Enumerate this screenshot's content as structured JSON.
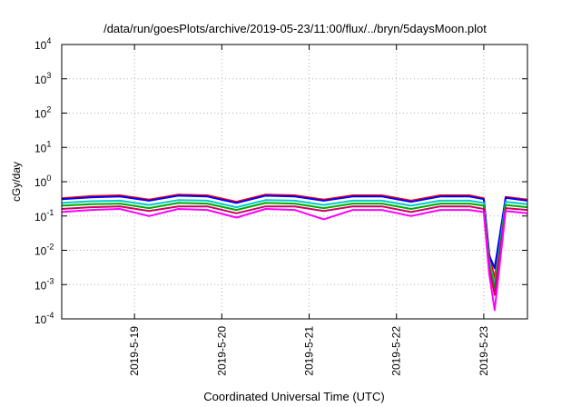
{
  "chart_data": {
    "type": "line",
    "title": "/data/run/goesPlots/archive/2019-05-23/11:00/flux/../bryn/5daysMoon.plot",
    "xlabel": "Coordinated Universal Time (UTC)",
    "ylabel": "cGy/day",
    "y_scale": "log",
    "ylim": [
      0.0001,
      10000
    ],
    "xlim": [
      "2019-05-18 04:00",
      "2019-05-23 12:00"
    ],
    "grid": true,
    "y_ticks": [
      {
        "base": "10",
        "exp": "-4",
        "value": 0.0001
      },
      {
        "base": "10",
        "exp": "-3",
        "value": 0.001
      },
      {
        "base": "10",
        "exp": "-2",
        "value": 0.01
      },
      {
        "base": "10",
        "exp": "-1",
        "value": 0.1
      },
      {
        "base": "10",
        "exp": "0",
        "value": 1
      },
      {
        "base": "10",
        "exp": "1",
        "value": 10
      },
      {
        "base": "10",
        "exp": "2",
        "value": 100
      },
      {
        "base": "10",
        "exp": "3",
        "value": 1000
      },
      {
        "base": "10",
        "exp": "4",
        "value": 10000
      }
    ],
    "x_ticks": [
      {
        "label": "2019-5-19",
        "x": "2019-05-19 00:00"
      },
      {
        "label": "2019-5-20",
        "x": "2019-05-20 00:00"
      },
      {
        "label": "2019-5-21",
        "x": "2019-05-21 00:00"
      },
      {
        "label": "2019-5-22",
        "x": "2019-05-22 00:00"
      },
      {
        "label": "2019-5-23",
        "x": "2019-05-23 00:00"
      }
    ],
    "x": [
      "2019-05-18 04:00",
      "2019-05-18 12:00",
      "2019-05-18 20:00",
      "2019-05-19 04:00",
      "2019-05-19 12:00",
      "2019-05-19 20:00",
      "2019-05-20 04:00",
      "2019-05-20 12:00",
      "2019-05-20 20:00",
      "2019-05-21 04:00",
      "2019-05-21 12:00",
      "2019-05-21 20:00",
      "2019-05-22 04:00",
      "2019-05-22 12:00",
      "2019-05-22 20:00",
      "2019-05-23 00:00",
      "2019-05-23 01:30",
      "2019-05-23 03:00",
      "2019-05-23 06:00",
      "2019-05-23 12:00"
    ],
    "series": [
      {
        "color": "#ff0000",
        "values": [
          0.33,
          0.38,
          0.4,
          0.3,
          0.42,
          0.4,
          0.26,
          0.42,
          0.4,
          0.3,
          0.4,
          0.4,
          0.28,
          0.4,
          0.4,
          0.33,
          0.008,
          0.0015,
          0.36,
          0.3
        ]
      },
      {
        "color": "#0000ff",
        "values": [
          0.31,
          0.35,
          0.37,
          0.28,
          0.39,
          0.37,
          0.24,
          0.39,
          0.37,
          0.28,
          0.37,
          0.37,
          0.26,
          0.37,
          0.37,
          0.31,
          0.007,
          0.003,
          0.34,
          0.28
        ]
      },
      {
        "color": "#00cccc",
        "values": [
          0.24,
          0.27,
          0.28,
          0.21,
          0.29,
          0.28,
          0.18,
          0.29,
          0.28,
          0.21,
          0.28,
          0.28,
          0.2,
          0.28,
          0.28,
          0.24,
          0.005,
          0.001,
          0.26,
          0.22
        ]
      },
      {
        "color": "#00aa00",
        "values": [
          0.2,
          0.22,
          0.23,
          0.17,
          0.24,
          0.23,
          0.15,
          0.24,
          0.23,
          0.17,
          0.23,
          0.23,
          0.16,
          0.23,
          0.23,
          0.2,
          0.004,
          0.0008,
          0.21,
          0.18
        ]
      },
      {
        "color": "#cc0066",
        "values": [
          0.16,
          0.18,
          0.19,
          0.14,
          0.19,
          0.19,
          0.12,
          0.19,
          0.19,
          0.14,
          0.19,
          0.19,
          0.13,
          0.19,
          0.19,
          0.16,
          0.003,
          0.0005,
          0.17,
          0.15
        ]
      },
      {
        "color": "#ff00ff",
        "values": [
          0.13,
          0.15,
          0.16,
          0.1,
          0.16,
          0.15,
          0.09,
          0.16,
          0.15,
          0.08,
          0.15,
          0.15,
          0.1,
          0.15,
          0.15,
          0.13,
          0.002,
          0.00018,
          0.14,
          0.12
        ]
      }
    ]
  }
}
